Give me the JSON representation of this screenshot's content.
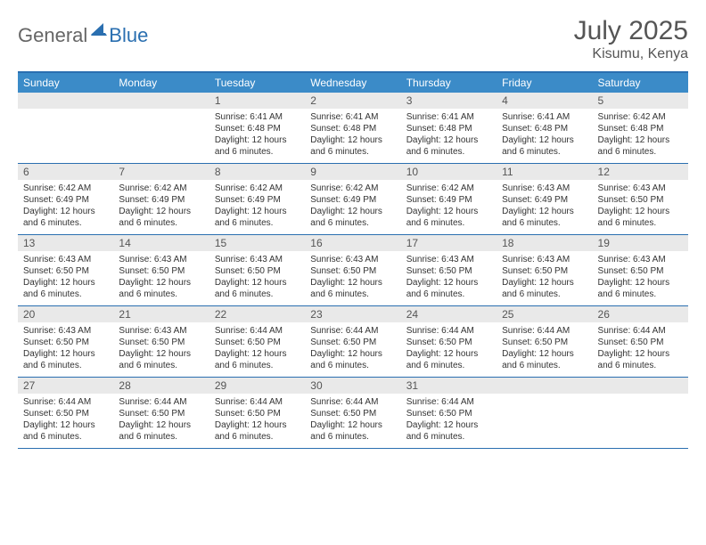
{
  "logo": {
    "general": "General",
    "blue": "Blue"
  },
  "title": "July 2025",
  "location": "Kisumu, Kenya",
  "colors": {
    "header_bg": "#3b8bc8",
    "border": "#2a6fb0",
    "daynum_bg": "#e9e9e9",
    "text": "#333333",
    "title_text": "#555555"
  },
  "daysOfWeek": [
    "Sunday",
    "Monday",
    "Tuesday",
    "Wednesday",
    "Thursday",
    "Friday",
    "Saturday"
  ],
  "weeks": [
    [
      {
        "num": "",
        "lines": [
          "",
          "",
          "",
          ""
        ]
      },
      {
        "num": "",
        "lines": [
          "",
          "",
          "",
          ""
        ]
      },
      {
        "num": "1",
        "lines": [
          "Sunrise: 6:41 AM",
          "Sunset: 6:48 PM",
          "Daylight: 12 hours",
          "and 6 minutes."
        ]
      },
      {
        "num": "2",
        "lines": [
          "Sunrise: 6:41 AM",
          "Sunset: 6:48 PM",
          "Daylight: 12 hours",
          "and 6 minutes."
        ]
      },
      {
        "num": "3",
        "lines": [
          "Sunrise: 6:41 AM",
          "Sunset: 6:48 PM",
          "Daylight: 12 hours",
          "and 6 minutes."
        ]
      },
      {
        "num": "4",
        "lines": [
          "Sunrise: 6:41 AM",
          "Sunset: 6:48 PM",
          "Daylight: 12 hours",
          "and 6 minutes."
        ]
      },
      {
        "num": "5",
        "lines": [
          "Sunrise: 6:42 AM",
          "Sunset: 6:48 PM",
          "Daylight: 12 hours",
          "and 6 minutes."
        ]
      }
    ],
    [
      {
        "num": "6",
        "lines": [
          "Sunrise: 6:42 AM",
          "Sunset: 6:49 PM",
          "Daylight: 12 hours",
          "and 6 minutes."
        ]
      },
      {
        "num": "7",
        "lines": [
          "Sunrise: 6:42 AM",
          "Sunset: 6:49 PM",
          "Daylight: 12 hours",
          "and 6 minutes."
        ]
      },
      {
        "num": "8",
        "lines": [
          "Sunrise: 6:42 AM",
          "Sunset: 6:49 PM",
          "Daylight: 12 hours",
          "and 6 minutes."
        ]
      },
      {
        "num": "9",
        "lines": [
          "Sunrise: 6:42 AM",
          "Sunset: 6:49 PM",
          "Daylight: 12 hours",
          "and 6 minutes."
        ]
      },
      {
        "num": "10",
        "lines": [
          "Sunrise: 6:42 AM",
          "Sunset: 6:49 PM",
          "Daylight: 12 hours",
          "and 6 minutes."
        ]
      },
      {
        "num": "11",
        "lines": [
          "Sunrise: 6:43 AM",
          "Sunset: 6:49 PM",
          "Daylight: 12 hours",
          "and 6 minutes."
        ]
      },
      {
        "num": "12",
        "lines": [
          "Sunrise: 6:43 AM",
          "Sunset: 6:50 PM",
          "Daylight: 12 hours",
          "and 6 minutes."
        ]
      }
    ],
    [
      {
        "num": "13",
        "lines": [
          "Sunrise: 6:43 AM",
          "Sunset: 6:50 PM",
          "Daylight: 12 hours",
          "and 6 minutes."
        ]
      },
      {
        "num": "14",
        "lines": [
          "Sunrise: 6:43 AM",
          "Sunset: 6:50 PM",
          "Daylight: 12 hours",
          "and 6 minutes."
        ]
      },
      {
        "num": "15",
        "lines": [
          "Sunrise: 6:43 AM",
          "Sunset: 6:50 PM",
          "Daylight: 12 hours",
          "and 6 minutes."
        ]
      },
      {
        "num": "16",
        "lines": [
          "Sunrise: 6:43 AM",
          "Sunset: 6:50 PM",
          "Daylight: 12 hours",
          "and 6 minutes."
        ]
      },
      {
        "num": "17",
        "lines": [
          "Sunrise: 6:43 AM",
          "Sunset: 6:50 PM",
          "Daylight: 12 hours",
          "and 6 minutes."
        ]
      },
      {
        "num": "18",
        "lines": [
          "Sunrise: 6:43 AM",
          "Sunset: 6:50 PM",
          "Daylight: 12 hours",
          "and 6 minutes."
        ]
      },
      {
        "num": "19",
        "lines": [
          "Sunrise: 6:43 AM",
          "Sunset: 6:50 PM",
          "Daylight: 12 hours",
          "and 6 minutes."
        ]
      }
    ],
    [
      {
        "num": "20",
        "lines": [
          "Sunrise: 6:43 AM",
          "Sunset: 6:50 PM",
          "Daylight: 12 hours",
          "and 6 minutes."
        ]
      },
      {
        "num": "21",
        "lines": [
          "Sunrise: 6:43 AM",
          "Sunset: 6:50 PM",
          "Daylight: 12 hours",
          "and 6 minutes."
        ]
      },
      {
        "num": "22",
        "lines": [
          "Sunrise: 6:44 AM",
          "Sunset: 6:50 PM",
          "Daylight: 12 hours",
          "and 6 minutes."
        ]
      },
      {
        "num": "23",
        "lines": [
          "Sunrise: 6:44 AM",
          "Sunset: 6:50 PM",
          "Daylight: 12 hours",
          "and 6 minutes."
        ]
      },
      {
        "num": "24",
        "lines": [
          "Sunrise: 6:44 AM",
          "Sunset: 6:50 PM",
          "Daylight: 12 hours",
          "and 6 minutes."
        ]
      },
      {
        "num": "25",
        "lines": [
          "Sunrise: 6:44 AM",
          "Sunset: 6:50 PM",
          "Daylight: 12 hours",
          "and 6 minutes."
        ]
      },
      {
        "num": "26",
        "lines": [
          "Sunrise: 6:44 AM",
          "Sunset: 6:50 PM",
          "Daylight: 12 hours",
          "and 6 minutes."
        ]
      }
    ],
    [
      {
        "num": "27",
        "lines": [
          "Sunrise: 6:44 AM",
          "Sunset: 6:50 PM",
          "Daylight: 12 hours",
          "and 6 minutes."
        ]
      },
      {
        "num": "28",
        "lines": [
          "Sunrise: 6:44 AM",
          "Sunset: 6:50 PM",
          "Daylight: 12 hours",
          "and 6 minutes."
        ]
      },
      {
        "num": "29",
        "lines": [
          "Sunrise: 6:44 AM",
          "Sunset: 6:50 PM",
          "Daylight: 12 hours",
          "and 6 minutes."
        ]
      },
      {
        "num": "30",
        "lines": [
          "Sunrise: 6:44 AM",
          "Sunset: 6:50 PM",
          "Daylight: 12 hours",
          "and 6 minutes."
        ]
      },
      {
        "num": "31",
        "lines": [
          "Sunrise: 6:44 AM",
          "Sunset: 6:50 PM",
          "Daylight: 12 hours",
          "and 6 minutes."
        ]
      },
      {
        "num": "",
        "lines": [
          "",
          "",
          "",
          ""
        ]
      },
      {
        "num": "",
        "lines": [
          "",
          "",
          "",
          ""
        ]
      }
    ]
  ]
}
